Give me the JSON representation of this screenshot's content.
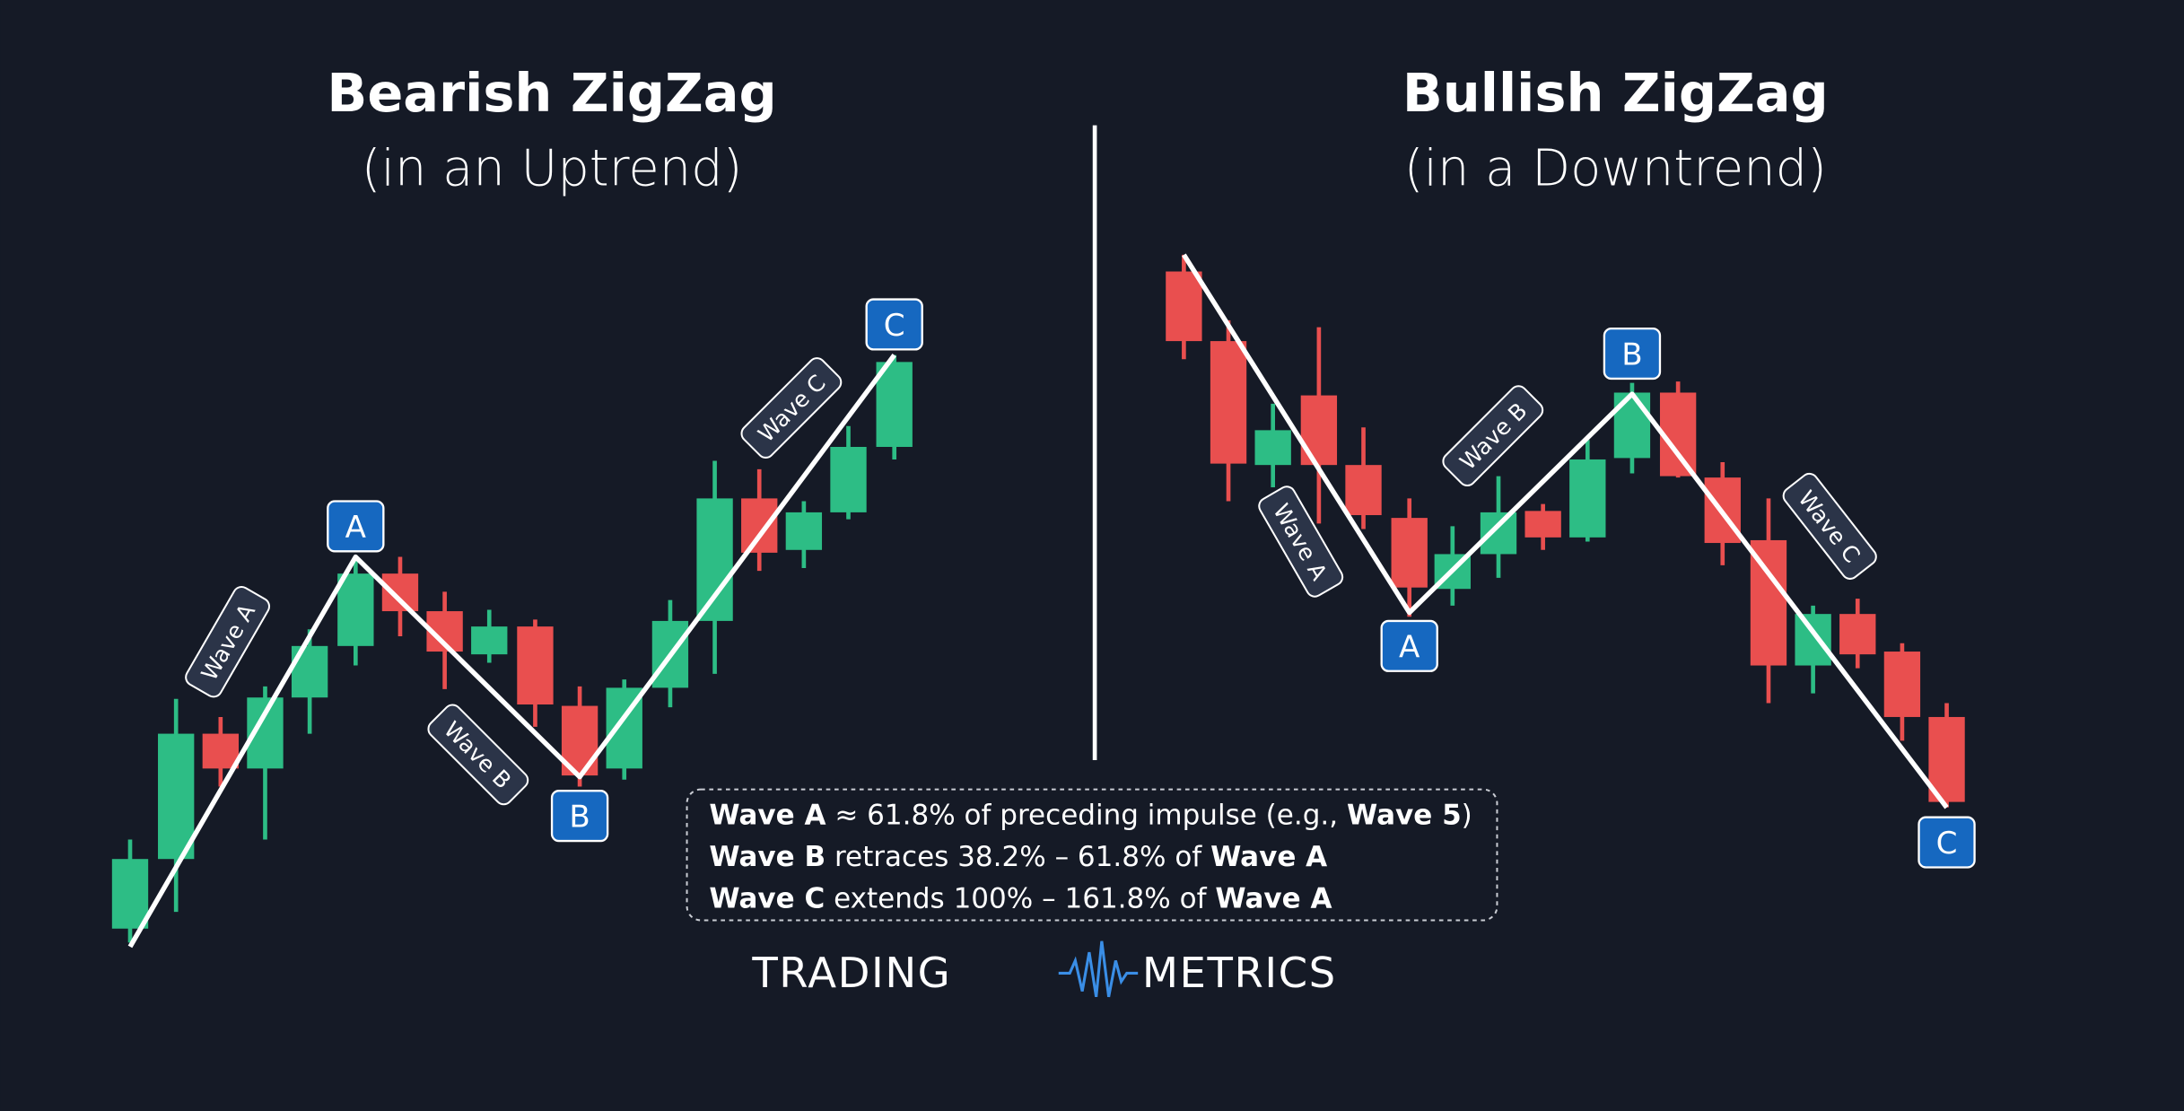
{
  "left": {
    "title": "Bearish ZigZag",
    "subtitle": "(in an Uptrend)",
    "points": [
      "A",
      "B",
      "C"
    ],
    "waves": [
      "Wave A",
      "Wave B",
      "Wave C"
    ]
  },
  "right": {
    "title": "Bullish ZigZag",
    "subtitle": "(in a Downtrend)",
    "points": [
      "A",
      "B",
      "C"
    ],
    "waves": [
      "Wave A",
      "Wave B",
      "Wave C"
    ]
  },
  "rules": [
    [
      "Wave A",
      " ≈ 61.8% of preceding impulse (e.g., ",
      "Wave 5",
      ")"
    ],
    [
      "Wave B",
      " retraces 38.2% – 61.8% of ",
      "Wave A"
    ],
    [
      "Wave C",
      " extends 100% – 161.8% of ",
      "Wave A"
    ]
  ],
  "logo": {
    "left": "TRADING",
    "right": "METRICS"
  }
}
